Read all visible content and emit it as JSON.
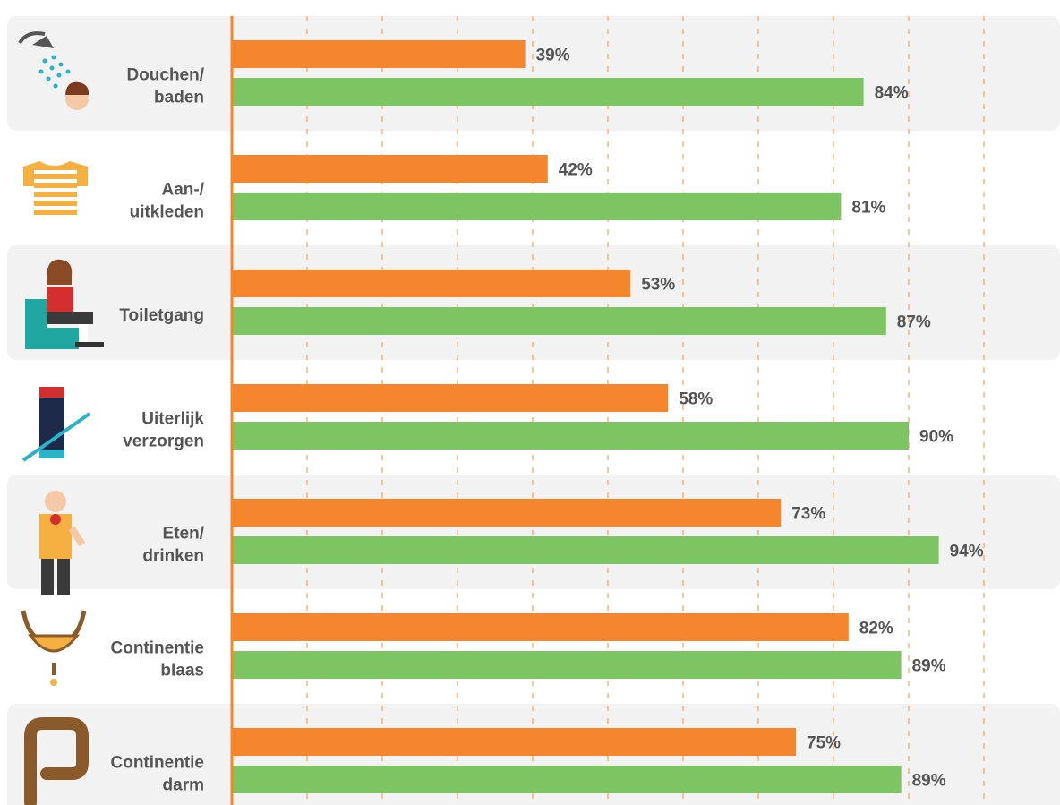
{
  "chart_data": {
    "type": "bar",
    "orientation": "horizontal",
    "categories": [
      [
        "Douchen/",
        "baden"
      ],
      [
        "Aan-/",
        "uitkleden"
      ],
      [
        "Toiletgang"
      ],
      [
        "Uiterlijk",
        "verzorgen"
      ],
      [
        "Eten/",
        "drinken"
      ],
      [
        "Continentie",
        "blaas"
      ],
      [
        "Continentie",
        "darm"
      ]
    ],
    "icons": [
      "shower-icon",
      "striped-shirt-icon",
      "person-on-toilet-icon",
      "toothpaste-icon",
      "person-eating-icon",
      "bladder-icon",
      "intestine-icon"
    ],
    "series": [
      {
        "color": "#F4862D",
        "values": [
          39,
          42,
          53,
          58,
          73,
          82,
          75
        ]
      },
      {
        "color": "#7DC462",
        "values": [
          84,
          81,
          87,
          90,
          94,
          89,
          89
        ]
      }
    ],
    "value_suffix": "%",
    "xlim": [
      0,
      100
    ],
    "grid": "dashed vertical",
    "legend": "none"
  },
  "colors": {
    "axis": "#F4862D",
    "grid": "#F4A25A",
    "band": "#F1F2F1",
    "label": "#555555"
  }
}
